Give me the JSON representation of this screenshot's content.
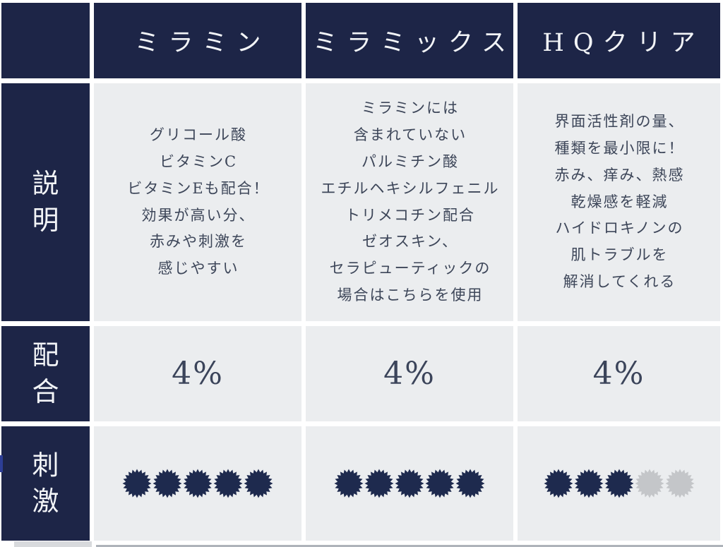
{
  "table": {
    "row_labels": {
      "description": "説\n明",
      "concentration": "配\n合",
      "irritation": "刺\n激"
    },
    "products": [
      {
        "name": "ミラミン",
        "description": "グリコール酸\nビタミンC\nビタミンEも配合！\n効果が高い分、\n赤みや刺激を\n感じやすい",
        "concentration": "4%",
        "irritation_filled": 5,
        "irritation_total": 5
      },
      {
        "name": "ミラミックス",
        "description": "ミラミンには\n含まれていない\nパルミチン酸\nエチルヘキシルフェニル\nトリメコチン配合\nゼオスキン、\nセラピューティックの\n場合はこちらを使用",
        "concentration": "4%",
        "irritation_filled": 5,
        "irritation_total": 5
      },
      {
        "name": "HQクリア",
        "description": "界面活性剤の量、\n種類を最小限に！\n赤み、痒み、熱感\n乾燥感を軽減\nハイドロキノンの\n肌トラブルを\n解消してくれる",
        "concentration": "4%",
        "irritation_filled": 3,
        "irritation_total": 5
      }
    ]
  },
  "chart_data": {
    "type": "table",
    "columns": [
      "",
      "ミラミン",
      "ミラミックス",
      "HQクリア"
    ],
    "rows": [
      [
        "説明",
        "グリコール酸 ビタミンC ビタミンEも配合！ 効果が高い分、赤みや刺激を感じやすい",
        "ミラミンには含まれていない パルミチン酸エチルヘキシルフェニルトリメコチン配合 ゼオスキン、セラピューティックの場合はこちらを使用",
        "界面活性剤の量、種類を最小限に！ 赤み、痒み、熱感 乾燥感を軽減 ハイドロキノンの肌トラブルを解消してくれる"
      ],
      [
        "配合",
        "4%",
        "4%",
        "4%"
      ],
      [
        "刺激",
        "5/5",
        "5/5",
        "3/5"
      ]
    ]
  },
  "colors": {
    "navy": "#1d2547",
    "cell_bg": "#ebedef",
    "header_text": "#f2f4f7",
    "body_text": "#3d4659",
    "star_filled": "#1e2a4e",
    "star_empty": "#c4c6c9",
    "accent_blue": "#2d3e96"
  }
}
